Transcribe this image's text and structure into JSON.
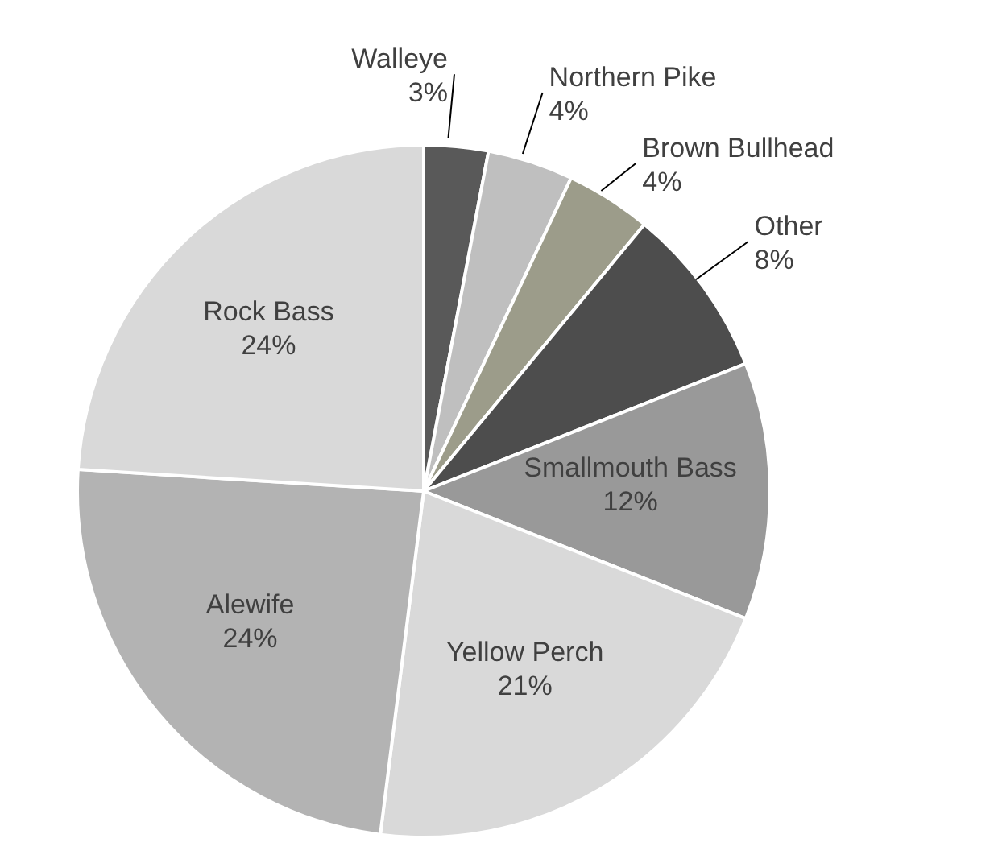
{
  "chart_data": {
    "type": "pie",
    "categories": [
      "Walleye",
      "Northern Pike",
      "Brown Bullhead",
      "Other",
      "Smallmouth Bass",
      "Yellow Perch",
      "Alewife",
      "Rock Bass"
    ],
    "values": [
      3,
      4,
      4,
      8,
      12,
      21,
      24,
      24
    ],
    "value_labels": [
      "3%",
      "4%",
      "4%",
      "8%",
      "12%",
      "21%",
      "24%",
      "24%"
    ],
    "colors": [
      "#595959",
      "#bfbfbf",
      "#9c9c8a",
      "#4d4d4d",
      "#999999",
      "#d9d9d9",
      "#b3b3b3",
      "#d9d9d9"
    ]
  }
}
